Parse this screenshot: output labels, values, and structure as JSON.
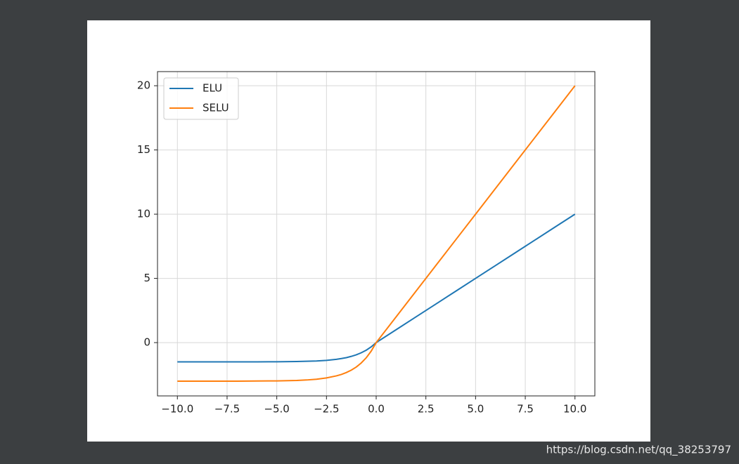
{
  "chart_data": {
    "type": "line",
    "x": [
      -10,
      -9,
      -8,
      -7,
      -6,
      -5,
      -4,
      -3.5,
      -3,
      -2.5,
      -2,
      -1.75,
      -1.5,
      -1.25,
      -1,
      -0.75,
      -0.5,
      -0.25,
      0,
      1,
      2,
      3,
      4,
      5,
      6,
      7,
      8,
      9,
      10
    ],
    "series": [
      {
        "name": "ELU",
        "color": "#1f77b4",
        "values": [
          -1.5,
          -1.5,
          -1.5,
          -1.5,
          -1.5,
          -1.49,
          -1.47,
          -1.45,
          -1.43,
          -1.38,
          -1.3,
          -1.24,
          -1.17,
          -1.07,
          -0.95,
          -0.79,
          -0.59,
          -0.33,
          0,
          1,
          2,
          3,
          4,
          5,
          6,
          7,
          8,
          9,
          10
        ]
      },
      {
        "name": "SELU",
        "color": "#ff7f0e",
        "values": [
          -3,
          -3,
          -3,
          -3,
          -2.99,
          -2.98,
          -2.95,
          -2.91,
          -2.85,
          -2.75,
          -2.59,
          -2.48,
          -2.33,
          -2.14,
          -1.9,
          -1.58,
          -1.18,
          -0.66,
          0,
          2,
          4,
          6,
          8,
          10,
          12,
          14,
          16,
          18,
          20
        ]
      }
    ],
    "xlim": [
      -11,
      11
    ],
    "xticks": [
      {
        "value": -10,
        "label": "−10.0"
      },
      {
        "value": -7.5,
        "label": "−7.5"
      },
      {
        "value": -5,
        "label": "−5.0"
      },
      {
        "value": -2.5,
        "label": "−2.5"
      },
      {
        "value": 0,
        "label": "0.0"
      },
      2.5,
      {
        "value": 5,
        "label": "5.0"
      },
      7.5,
      {
        "value": 10,
        "label": "10.0"
      }
    ],
    "ylim": [
      -4.15,
      21.1
    ],
    "yticks": [
      0,
      5,
      10,
      15,
      20
    ],
    "grid": true,
    "legend": "upper left"
  },
  "watermark": "https://blog.csdn.net/qq_38253797"
}
